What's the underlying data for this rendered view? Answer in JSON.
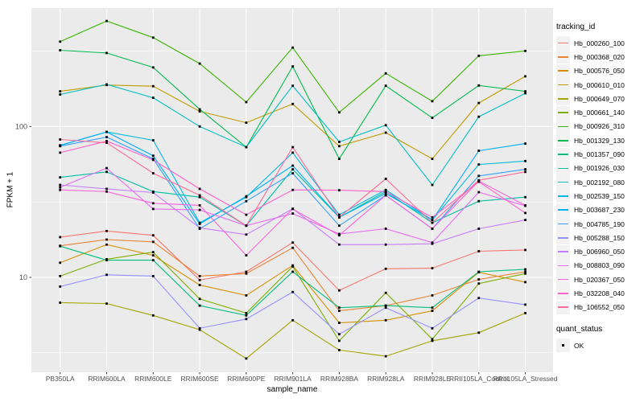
{
  "figure": {
    "x_axis": {
      "title": "sample_name"
    },
    "y_axis": {
      "title": "FPKM + 1",
      "tick_labels": [
        "100",
        "10"
      ],
      "tick_values": [
        100,
        10
      ]
    },
    "legend": {
      "tracking_title": "tracking_id",
      "quant_title": "quant_status",
      "quant_items": [
        {
          "label": "OK",
          "marker": "filled-black-square"
        }
      ]
    },
    "colors": {
      "panel_background": "#EBEBEB",
      "grid": "#FFFFFF",
      "tick_text": "#4D4D4D",
      "point": "#000000",
      "legend_key_background": "#F2F2F2"
    }
  },
  "chart_data": {
    "type": "line",
    "title": "",
    "xlabel": "sample_name",
    "ylabel": "FPKM + 1",
    "y_scale": "log10",
    "ylim": [
      2.5,
      560
    ],
    "y_major_ticks": [
      10,
      100
    ],
    "y_minor_ticks": [
      3.162,
      31.62,
      316.2
    ],
    "grid": true,
    "legend_position": "right",
    "point_marker": {
      "shape": "filled-square",
      "color": "#000000",
      "status_label": "OK"
    },
    "categories": [
      "PB350LA",
      "RRIM600LA",
      "RRIM600LE",
      "RRIM600SE",
      "RRIM600PE",
      "RRIM901LA",
      "RRIM928BA",
      "RRIM928LA",
      "RRIM928LE",
      "RRII105LA_Control",
      "RRII105LA_Stressed"
    ],
    "series": [
      {
        "name": "Hb_000260_100",
        "color": "#F8766D",
        "values": [
          18.5,
          20.3,
          19.0,
          9.6,
          10.9,
          17.0,
          8.2,
          11.4,
          11.5,
          14.9,
          15.2
        ]
      },
      {
        "name": "Hb_000368_020",
        "color": "#EA8331",
        "values": [
          16.2,
          17.8,
          17.2,
          10.2,
          10.6,
          15.7,
          6.0,
          6.5,
          7.6,
          9.7,
          10.9
        ]
      },
      {
        "name": "Hb_000576_050",
        "color": "#D89000",
        "values": [
          12.5,
          16.5,
          14.0,
          8.9,
          7.6,
          12.0,
          5.0,
          5.2,
          6.0,
          10.8,
          9.3
        ]
      },
      {
        "name": "Hb_000610_010",
        "color": "#C09B00",
        "values": [
          171,
          188,
          185,
          126,
          106,
          141,
          74,
          91,
          61,
          143,
          215
        ]
      },
      {
        "name": "Hb_000649_070",
        "color": "#A3A500",
        "values": [
          6.8,
          6.7,
          5.6,
          4.5,
          2.9,
          5.2,
          3.3,
          3.0,
          3.8,
          4.3,
          5.8
        ]
      },
      {
        "name": "Hb_000661_140",
        "color": "#7CAE00",
        "values": [
          10.2,
          13.2,
          14.7,
          7.2,
          5.8,
          11.8,
          3.8,
          7.9,
          3.9,
          9.1,
          10.6
        ]
      },
      {
        "name": "Hb_000926_310",
        "color": "#39B600",
        "values": [
          365,
          500,
          388,
          261,
          145,
          333,
          124,
          225,
          147,
          294,
          317
        ]
      },
      {
        "name": "Hb_001329_130",
        "color": "#00BB4E",
        "values": [
          320,
          307,
          246,
          130,
          73,
          250,
          61,
          186,
          114,
          187,
          171
        ]
      },
      {
        "name": "Hb_001357_090",
        "color": "#00BF7D",
        "values": [
          16.1,
          13.0,
          13.0,
          6.5,
          5.6,
          10.9,
          6.3,
          6.5,
          6.3,
          10.9,
          11.3
        ]
      },
      {
        "name": "Hb_001926_030",
        "color": "#00C1A3",
        "values": [
          46,
          50,
          37,
          34,
          22,
          52,
          25,
          37,
          23,
          32,
          34
        ]
      },
      {
        "name": "Hb_002192_080",
        "color": "#00BFC4",
        "values": [
          163,
          190,
          155,
          100,
          73,
          186,
          79,
          102,
          41,
          116,
          166
        ]
      },
      {
        "name": "Hb_002539_150",
        "color": "#00BAE0",
        "values": [
          75,
          92,
          81,
          23,
          34,
          67,
          26,
          38,
          24,
          56,
          59
        ]
      },
      {
        "name": "Hb_003687_230",
        "color": "#00B0F6",
        "values": [
          75,
          92,
          64,
          22.6,
          34.5,
          55,
          25,
          36,
          24,
          69,
          77
        ]
      },
      {
        "name": "Hb_004785_190",
        "color": "#35A2FF",
        "values": [
          74,
          85,
          61,
          21,
          32,
          49,
          22,
          35,
          21,
          47,
          52
        ]
      },
      {
        "name": "Hb_005288_150",
        "color": "#9590FF",
        "values": [
          8.7,
          10.4,
          10.2,
          4.6,
          5.3,
          8.0,
          4.2,
          6.3,
          4.6,
          7.3,
          6.6
        ]
      },
      {
        "name": "Hb_006960_050",
        "color": "#C77CFF",
        "values": [
          41,
          38.6,
          36.5,
          21.3,
          19.2,
          28.5,
          16.5,
          16.5,
          16.7,
          21,
          24
        ]
      },
      {
        "name": "Hb_008803_090",
        "color": "#E76BF3",
        "values": [
          39.5,
          53,
          28.4,
          28,
          22,
          26.5,
          19.4,
          21,
          17,
          36.7,
          29.8
        ]
      },
      {
        "name": "Hb_020367_050",
        "color": "#FA62DB",
        "values": [
          38,
          37,
          31,
          30,
          14,
          28.4,
          19,
          35,
          21,
          43.5,
          30
        ]
      },
      {
        "name": "Hb_032208_040",
        "color": "#FF61CC",
        "values": [
          67,
          80,
          60,
          38.6,
          26,
          38,
          37.8,
          37,
          25,
          43,
          26.7
        ]
      },
      {
        "name": "Hb_106552_050",
        "color": "#FF6A98",
        "values": [
          82,
          78,
          49,
          35,
          22,
          73,
          25,
          45,
          23,
          44,
          50
        ]
      }
    ]
  }
}
